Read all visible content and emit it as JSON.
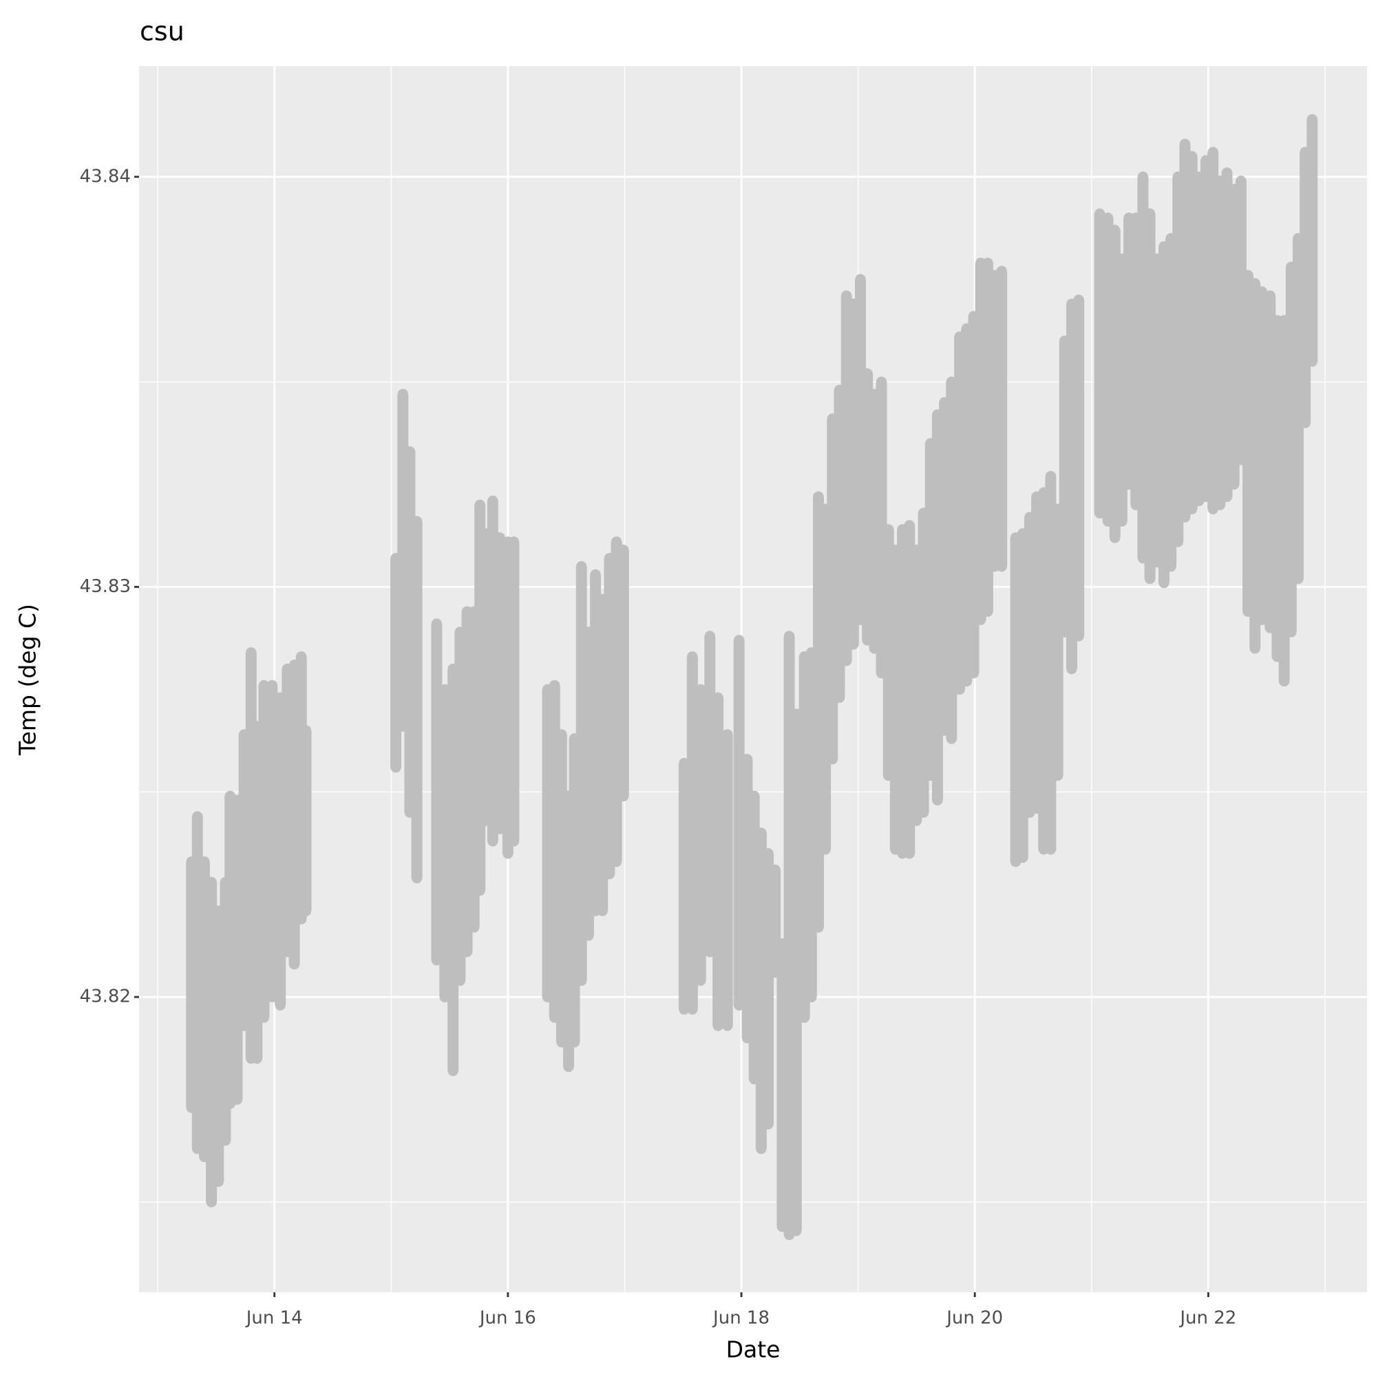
{
  "chart_data": {
    "type": "scatter",
    "title": "csu",
    "x_label": "Date",
    "y_label": "Temp (deg C)",
    "color": "#bebebe",
    "grid": true,
    "xlim": [
      12.84,
      23.36
    ],
    "ylim": [
      43.8128,
      43.8427
    ],
    "xticks": [
      {
        "value": 14,
        "label": "Jun 14"
      },
      {
        "value": 16,
        "label": "Jun 16"
      },
      {
        "value": 18,
        "label": "Jun 18"
      },
      {
        "value": 20,
        "label": "Jun 20"
      },
      {
        "value": 22,
        "label": "Jun 22"
      }
    ],
    "yticks": [
      43.82,
      43.83,
      43.84
    ],
    "x": [
      13.29,
      13.34,
      13.4,
      13.46,
      13.52,
      13.58,
      13.62,
      13.68,
      13.74,
      13.8,
      13.85,
      13.91,
      13.98,
      14.05,
      14.11,
      14.17,
      14.23,
      14.27,
      15.04,
      15.1,
      15.16,
      15.22,
      15.39,
      15.46,
      15.53,
      15.59,
      15.65,
      15.71,
      15.76,
      15.81,
      15.87,
      15.93,
      16.0,
      16.05,
      16.34,
      16.4,
      16.46,
      16.52,
      16.57,
      16.63,
      16.69,
      16.75,
      16.81,
      16.87,
      16.93,
      16.99,
      17.51,
      17.58,
      17.65,
      17.73,
      17.8,
      17.88,
      17.98,
      18.05,
      18.11,
      18.17,
      18.23,
      18.29,
      18.35,
      18.41,
      18.47,
      18.54,
      18.6,
      18.66,
      18.72,
      18.78,
      18.84,
      18.9,
      18.96,
      19.02,
      19.08,
      19.14,
      19.2,
      19.26,
      19.32,
      19.38,
      19.44,
      19.5,
      19.56,
      19.62,
      19.68,
      19.74,
      19.8,
      19.87,
      19.93,
      19.99,
      20.05,
      20.11,
      20.17,
      20.23,
      20.35,
      20.41,
      20.47,
      20.53,
      20.59,
      20.65,
      20.71,
      20.77,
      20.83,
      20.89,
      21.07,
      21.14,
      21.2,
      21.26,
      21.32,
      21.38,
      21.44,
      21.5,
      21.56,
      21.62,
      21.68,
      21.74,
      21.8,
      21.86,
      21.92,
      21.98,
      22.04,
      22.1,
      22.16,
      22.22,
      22.28,
      22.34,
      22.4,
      22.46,
      22.53,
      22.59,
      22.65,
      22.71,
      22.77,
      22.83,
      22.89
    ],
    "values": [
      [
        43.8233,
        43.8173
      ],
      [
        43.8244,
        43.8163
      ],
      [
        43.8233,
        43.8161
      ],
      [
        43.8228,
        43.815
      ],
      [
        43.8221,
        43.8155
      ],
      [
        43.8228,
        43.8165
      ],
      [
        43.8249,
        43.8174
      ],
      [
        43.8248,
        43.8175
      ],
      [
        43.8264,
        43.8193
      ],
      [
        43.8284,
        43.8185
      ],
      [
        43.8266,
        43.8185
      ],
      [
        43.8276,
        43.8195
      ],
      [
        43.8276,
        43.82
      ],
      [
        43.8273,
        43.8198
      ],
      [
        43.828,
        43.8211
      ],
      [
        43.8281,
        43.8208
      ],
      [
        43.8283,
        43.8219
      ],
      [
        43.8265,
        43.8221
      ],
      [
        43.8307,
        43.8256
      ],
      [
        43.8347,
        43.8266
      ],
      [
        43.8333,
        43.8245
      ],
      [
        43.8316,
        43.8229
      ],
      [
        43.8291,
        43.8209
      ],
      [
        43.8275,
        43.82
      ],
      [
        43.828,
        43.8182
      ],
      [
        43.8289,
        43.8204
      ],
      [
        43.8294,
        43.8211
      ],
      [
        43.8294,
        43.8217
      ],
      [
        43.832,
        43.8226
      ],
      [
        43.8313,
        43.8243
      ],
      [
        43.8321,
        43.8238
      ],
      [
        43.8312,
        43.8241
      ],
      [
        43.8311,
        43.8235
      ],
      [
        43.8311,
        43.8238
      ],
      [
        43.8275,
        43.82
      ],
      [
        43.8276,
        43.8195
      ],
      [
        43.8264,
        43.8189
      ],
      [
        43.8249,
        43.8183
      ],
      [
        43.8263,
        43.8189
      ],
      [
        43.8305,
        43.8204
      ],
      [
        43.8289,
        43.8215
      ],
      [
        43.8303,
        43.8221
      ],
      [
        43.8297,
        43.8221
      ],
      [
        43.8307,
        43.823
      ],
      [
        43.8311,
        43.8233
      ],
      [
        43.8309,
        43.8249
      ],
      [
        43.8257,
        43.8197
      ],
      [
        43.8283,
        43.8197
      ],
      [
        43.8275,
        43.8204
      ],
      [
        43.8288,
        43.8211
      ],
      [
        43.8273,
        43.8193
      ],
      [
        43.8264,
        43.8193
      ],
      [
        43.8287,
        43.8198
      ],
      [
        43.8258,
        43.819
      ],
      [
        43.8249,
        43.818
      ],
      [
        43.824,
        43.8163
      ],
      [
        43.8235,
        43.8169
      ],
      [
        43.8231,
        43.8206
      ],
      [
        43.8213,
        43.8144
      ],
      [
        43.8288,
        43.8142
      ],
      [
        43.8269,
        43.8143
      ],
      [
        43.8283,
        43.8195
      ],
      [
        43.8284,
        43.82
      ],
      [
        43.8322,
        43.8217
      ],
      [
        43.8319,
        43.8236
      ],
      [
        43.8341,
        43.8258
      ],
      [
        43.8348,
        43.8273
      ],
      [
        43.8371,
        43.8282
      ],
      [
        43.8369,
        43.8286
      ],
      [
        43.8375,
        43.8292
      ],
      [
        43.8352,
        43.8287
      ],
      [
        43.8347,
        43.8285
      ],
      [
        43.835,
        43.8279
      ],
      [
        43.8314,
        43.8254
      ],
      [
        43.8309,
        43.8236
      ],
      [
        43.8314,
        43.8235
      ],
      [
        43.8315,
        43.8235
      ],
      [
        43.8309,
        43.8243
      ],
      [
        43.8318,
        43.8245
      ],
      [
        43.8335,
        43.8254
      ],
      [
        43.8342,
        43.8248
      ],
      [
        43.8345,
        43.8265
      ],
      [
        43.835,
        43.8263
      ],
      [
        43.8361,
        43.8275
      ],
      [
        43.8363,
        43.8277
      ],
      [
        43.8366,
        43.8279
      ],
      [
        43.8379,
        43.8292
      ],
      [
        43.8379,
        43.8294
      ],
      [
        43.8376,
        43.8305
      ],
      [
        43.8377,
        43.8305
      ],
      [
        43.8312,
        43.8233
      ],
      [
        43.8313,
        43.8234
      ],
      [
        43.8317,
        43.8245
      ],
      [
        43.8322,
        43.8246
      ],
      [
        43.8323,
        43.8236
      ],
      [
        43.8327,
        43.8236
      ],
      [
        43.8319,
        43.8254
      ],
      [
        43.836,
        43.8289
      ],
      [
        43.8369,
        43.828
      ],
      [
        43.837,
        43.8288
      ],
      [
        43.8391,
        43.8318
      ],
      [
        43.839,
        43.8316
      ],
      [
        43.8387,
        43.8312
      ],
      [
        43.838,
        43.8316
      ],
      [
        43.839,
        43.8325
      ],
      [
        43.839,
        43.832
      ],
      [
        43.84,
        43.8307
      ],
      [
        43.8391,
        43.8302
      ],
      [
        43.838,
        43.8306
      ],
      [
        43.8383,
        43.8301
      ],
      [
        43.8385,
        43.8305
      ],
      [
        43.84,
        43.8311
      ],
      [
        43.8408,
        43.8317
      ],
      [
        43.8405,
        43.8319
      ],
      [
        43.84,
        43.8321
      ],
      [
        43.8404,
        43.8322
      ],
      [
        43.8406,
        43.8319
      ],
      [
        43.8399,
        43.832
      ],
      [
        43.8401,
        43.8322
      ],
      [
        43.8397,
        43.8325
      ],
      [
        43.8399,
        43.8331
      ],
      [
        43.8376,
        43.8294
      ],
      [
        43.8374,
        43.8285
      ],
      [
        43.8372,
        43.8292
      ],
      [
        43.8371,
        43.829
      ],
      [
        43.8365,
        43.8283
      ],
      [
        43.8365,
        43.8277
      ],
      [
        43.8378,
        43.8289
      ],
      [
        43.8385,
        43.8302
      ],
      [
        43.8406,
        43.834
      ],
      [
        43.8414,
        43.8355
      ]
    ]
  }
}
